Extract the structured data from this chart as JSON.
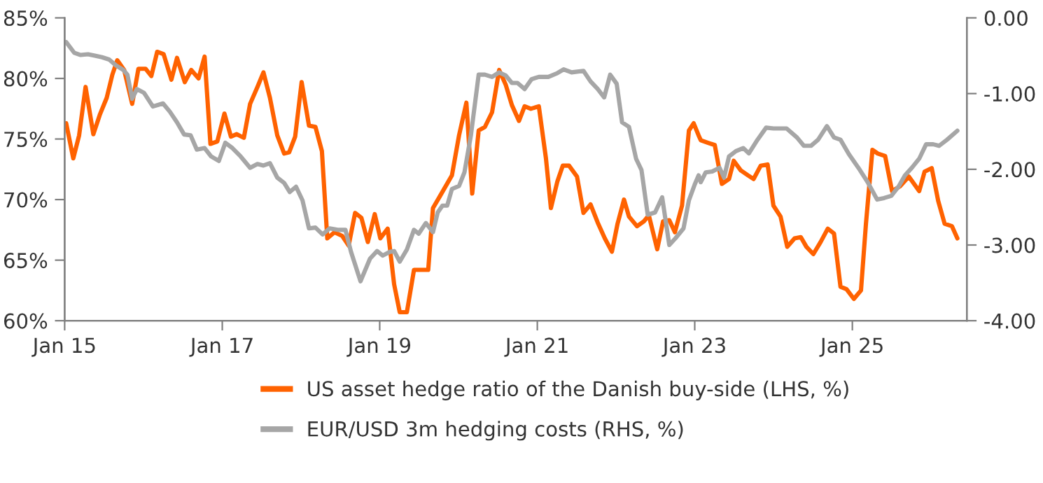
{
  "chart_data": {
    "type": "line",
    "legend": "bottom",
    "grid": false,
    "marker": "none",
    "line_style": "solid",
    "xlim": [
      "2015-01-01",
      "2026-06-16"
    ],
    "xticks": [
      {
        "value": "2015-01",
        "label": "Jan 15"
      },
      {
        "value": "2017-01",
        "label": "Jan 17"
      },
      {
        "value": "2019-01",
        "label": "Jan 19"
      },
      {
        "value": "2021-01",
        "label": "Jan 21"
      },
      {
        "value": "2023-01",
        "label": "Jan 23"
      },
      {
        "value": "2025-01",
        "label": "Jan 25"
      }
    ],
    "ylim": [
      60,
      85
    ],
    "yticks": [
      {
        "value": 60,
        "label": "60%"
      },
      {
        "value": 65,
        "label": "65%"
      },
      {
        "value": 70,
        "label": "70%"
      },
      {
        "value": 75,
        "label": "75%"
      },
      {
        "value": 80,
        "label": "80%"
      },
      {
        "value": 85,
        "label": "85%"
      }
    ],
    "y2lim": [
      -4,
      0
    ],
    "y2ticks": [
      {
        "value": -4,
        "label": "-4.00"
      },
      {
        "value": -3,
        "label": "-3.00"
      },
      {
        "value": -2,
        "label": "-2.00"
      },
      {
        "value": -1,
        "label": "-1.00"
      },
      {
        "value": 0,
        "label": "0.00"
      }
    ],
    "series": [
      {
        "name": "US asset hedge ratio of the Danish buy-side (LHS, %)",
        "color": "#ff6200",
        "axis": "y",
        "x": [
          "2015-01-08",
          "2015-02-10",
          "2015-03-09",
          "2015-04-08",
          "2015-05-14",
          "2015-06-13",
          "2015-07-15",
          "2015-08-10",
          "2015-09-02",
          "2015-10-04",
          "2015-11-10",
          "2015-12-09",
          "2016-01-11",
          "2016-02-07",
          "2016-03-05",
          "2016-04-04",
          "2016-05-10",
          "2016-06-05",
          "2016-07-11",
          "2016-08-10",
          "2016-09-13",
          "2016-10-11",
          "2016-11-07",
          "2016-12-09",
          "2017-01-11",
          "2017-02-10",
          "2017-03-09",
          "2017-04-11",
          "2017-05-10",
          "2017-06-13",
          "2017-07-11",
          "2017-08-10",
          "2017-09-13",
          "2017-10-15",
          "2017-11-07",
          "2017-12-05",
          "2018-01-04",
          "2018-02-07",
          "2018-03-09",
          "2018-04-08",
          "2018-05-03",
          "2018-06-05",
          "2018-07-11",
          "2018-08-10",
          "2018-09-09",
          "2018-10-08",
          "2018-11-07",
          "2018-12-09",
          "2019-01-04",
          "2019-02-07",
          "2019-03-09",
          "2019-04-04",
          "2019-05-07",
          "2019-06-09",
          "2019-08-14",
          "2019-09-05",
          "2019-10-08",
          "2019-12-02",
          "2020-01-04",
          "2020-02-07",
          "2020-03-05",
          "2020-04-04",
          "2020-05-03",
          "2020-06-05",
          "2020-07-08",
          "2020-08-07",
          "2020-09-05",
          "2020-10-08",
          "2020-11-03",
          "2020-12-02",
          "2021-01-08",
          "2021-02-10",
          "2021-03-05",
          "2021-04-04",
          "2021-04-29",
          "2021-05-28",
          "2021-07-04",
          "2021-08-03",
          "2021-09-05",
          "2021-10-08",
          "2021-11-10",
          "2021-12-13",
          "2022-01-08",
          "2022-02-07",
          "2022-03-02",
          "2022-04-08",
          "2022-05-10",
          "2022-06-02",
          "2022-07-11",
          "2022-08-07",
          "2022-09-05",
          "2022-10-01",
          "2022-11-03",
          "2022-12-05",
          "2022-12-27",
          "2023-01-19",
          "2023-01-29",
          "2023-03-02",
          "2023-04-04",
          "2023-05-07",
          "2023-06-09",
          "2023-07-01",
          "2023-08-03",
          "2023-09-05",
          "2023-10-01",
          "2023-11-03",
          "2023-12-05",
          "2024-01-01",
          "2024-02-03",
          "2024-03-05",
          "2024-04-08",
          "2024-05-07",
          "2024-06-02",
          "2024-07-04",
          "2024-08-07",
          "2024-09-09",
          "2024-10-08",
          "2024-11-07",
          "2024-12-05",
          "2025-01-08",
          "2025-02-10",
          "2025-03-05",
          "2025-04-04",
          "2025-04-29",
          "2025-06-02",
          "2025-07-04",
          "2025-08-10",
          "2025-09-20",
          "2025-11-07",
          "2025-12-02",
          "2026-01-04",
          "2026-02-03",
          "2026-03-05",
          "2026-04-08",
          "2026-05-03"
        ],
        "values": [
          76.3,
          73.4,
          75.3,
          79.3,
          75.4,
          77.0,
          78.4,
          80.3,
          81.5,
          80.7,
          77.9,
          80.8,
          80.8,
          80.2,
          82.2,
          82.0,
          79.9,
          81.7,
          79.7,
          80.7,
          80.0,
          81.8,
          74.6,
          74.8,
          77.1,
          75.2,
          75.4,
          75.1,
          77.9,
          79.3,
          80.5,
          78.4,
          75.3,
          73.8,
          73.9,
          75.2,
          79.7,
          76.1,
          76.0,
          74.0,
          66.8,
          67.3,
          67.0,
          66.2,
          68.9,
          68.5,
          66.5,
          68.8,
          66.8,
          67.6,
          63.0,
          60.7,
          60.7,
          64.2,
          64.2,
          69.3,
          70.3,
          72.0,
          75.3,
          78.0,
          70.5,
          75.7,
          76.0,
          77.2,
          80.7,
          79.5,
          77.8,
          76.5,
          77.7,
          77.5,
          77.7,
          73.4,
          69.3,
          71.5,
          72.8,
          72.8,
          71.9,
          68.9,
          69.6,
          68.1,
          66.8,
          65.7,
          68.0,
          70.0,
          68.6,
          67.8,
          68.2,
          68.7,
          65.9,
          68.2,
          68.3,
          67.3,
          69.5,
          75.7,
          76.3,
          75.3,
          74.9,
          74.7,
          74.5,
          71.3,
          71.7,
          73.2,
          72.4,
          72.0,
          71.7,
          72.8,
          72.9,
          69.5,
          68.6,
          66.1,
          66.8,
          66.9,
          66.1,
          65.5,
          66.5,
          67.6,
          67.2,
          62.8,
          62.6,
          61.8,
          62.5,
          68.0,
          74.1,
          73.8,
          73.6,
          70.7,
          71.1,
          71.9,
          70.7,
          72.3,
          72.6,
          69.9,
          68.0,
          67.8,
          66.8
        ]
      },
      {
        "name": "EUR/USD 3m hedging costs (RHS, %)",
        "color": "#a6a6a6",
        "axis": "y2",
        "x": [
          "2015-01-08",
          "2015-02-14",
          "2015-03-16",
          "2015-04-19",
          "2015-05-21",
          "2015-06-23",
          "2015-07-26",
          "2015-08-28",
          "2015-10-01",
          "2015-10-19",
          "2015-11-10",
          "2015-12-02",
          "2016-01-04",
          "2016-02-14",
          "2016-04-01",
          "2016-05-03",
          "2016-06-05",
          "2016-07-08",
          "2016-08-07",
          "2016-09-05",
          "2016-10-11",
          "2016-11-10",
          "2016-12-16",
          "2017-01-15",
          "2017-02-17",
          "2017-03-27",
          "2017-05-10",
          "2017-06-13",
          "2017-07-11",
          "2017-08-10",
          "2017-09-13",
          "2017-10-15",
          "2017-11-10",
          "2017-12-09",
          "2018-01-08",
          "2018-02-07",
          "2018-03-09",
          "2018-04-11",
          "2018-05-14",
          "2018-06-20",
          "2018-07-26",
          "2018-08-21",
          "2018-10-04",
          "2018-11-17",
          "2018-12-20",
          "2019-01-15",
          "2019-02-17",
          "2019-03-09",
          "2019-04-04",
          "2019-05-07",
          "2019-06-09",
          "2019-07-01",
          "2019-08-03",
          "2019-09-05",
          "2019-09-27",
          "2019-10-19",
          "2019-11-10",
          "2019-12-02",
          "2020-01-04",
          "2020-01-29",
          "2020-02-28",
          "2020-04-04",
          "2020-05-03",
          "2020-06-05",
          "2020-07-08",
          "2020-08-07",
          "2020-09-05",
          "2020-10-01",
          "2020-11-03",
          "2020-12-05",
          "2021-01-08",
          "2021-02-21",
          "2021-04-04",
          "2021-05-03",
          "2021-06-09",
          "2021-08-03",
          "2021-09-05",
          "2021-10-08",
          "2021-11-07",
          "2021-12-05",
          "2022-01-04",
          "2022-01-29",
          "2022-03-02",
          "2022-04-04",
          "2022-04-29",
          "2022-05-28",
          "2022-07-01",
          "2022-08-03",
          "2022-09-05",
          "2022-10-04",
          "2022-11-10",
          "2022-12-05",
          "2023-01-01",
          "2023-01-19",
          "2023-01-29",
          "2023-02-21",
          "2023-03-23",
          "2023-04-26",
          "2023-05-17",
          "2023-06-09",
          "2023-07-11",
          "2023-08-14",
          "2023-09-09",
          "2023-10-19",
          "2023-11-28",
          "2024-01-01",
          "2024-03-02",
          "2024-04-19",
          "2024-05-21",
          "2024-06-23",
          "2024-07-26",
          "2024-09-05",
          "2024-10-08",
          "2024-11-07",
          "2024-12-16",
          "2025-01-29",
          "2025-03-13",
          "2025-04-26",
          "2025-05-28",
          "2025-07-01",
          "2025-08-03",
          "2025-09-02",
          "2025-10-04",
          "2025-11-07",
          "2025-12-09",
          "2026-01-11",
          "2026-02-07",
          "2026-03-16",
          "2026-05-03"
        ],
        "values": [
          -0.32,
          -0.46,
          -0.49,
          -0.48,
          -0.5,
          -0.52,
          -0.55,
          -0.63,
          -0.69,
          -0.75,
          -1.07,
          -0.94,
          -0.99,
          -1.17,
          -1.13,
          -1.24,
          -1.38,
          -1.54,
          -1.55,
          -1.74,
          -1.72,
          -1.83,
          -1.89,
          -1.65,
          -1.72,
          -1.83,
          -1.98,
          -1.93,
          -1.95,
          -1.92,
          -2.11,
          -2.18,
          -2.3,
          -2.23,
          -2.41,
          -2.78,
          -2.77,
          -2.86,
          -2.78,
          -2.8,
          -2.8,
          -3.09,
          -3.48,
          -3.18,
          -3.08,
          -3.14,
          -3.09,
          -3.08,
          -3.22,
          -3.06,
          -2.8,
          -2.85,
          -2.71,
          -2.83,
          -2.57,
          -2.48,
          -2.48,
          -2.26,
          -2.22,
          -2.04,
          -1.55,
          -0.75,
          -0.75,
          -0.78,
          -0.72,
          -0.76,
          -0.86,
          -0.86,
          -0.94,
          -0.81,
          -0.78,
          -0.78,
          -0.73,
          -0.68,
          -0.72,
          -0.7,
          -0.84,
          -0.94,
          -1.05,
          -0.75,
          -0.87,
          -1.38,
          -1.44,
          -1.86,
          -2.01,
          -2.6,
          -2.57,
          -2.37,
          -3.0,
          -2.91,
          -2.78,
          -2.41,
          -2.2,
          -2.08,
          -2.17,
          -2.04,
          -2.03,
          -1.98,
          -2.11,
          -1.83,
          -1.76,
          -1.72,
          -1.79,
          -1.61,
          -1.45,
          -1.46,
          -1.46,
          -1.58,
          -1.69,
          -1.69,
          -1.61,
          -1.43,
          -1.58,
          -1.61,
          -1.8,
          -1.98,
          -2.17,
          -2.4,
          -2.38,
          -2.35,
          -2.23,
          -2.08,
          -1.98,
          -1.86,
          -1.67,
          -1.67,
          -1.69,
          -1.61,
          -1.49
        ]
      }
    ]
  }
}
